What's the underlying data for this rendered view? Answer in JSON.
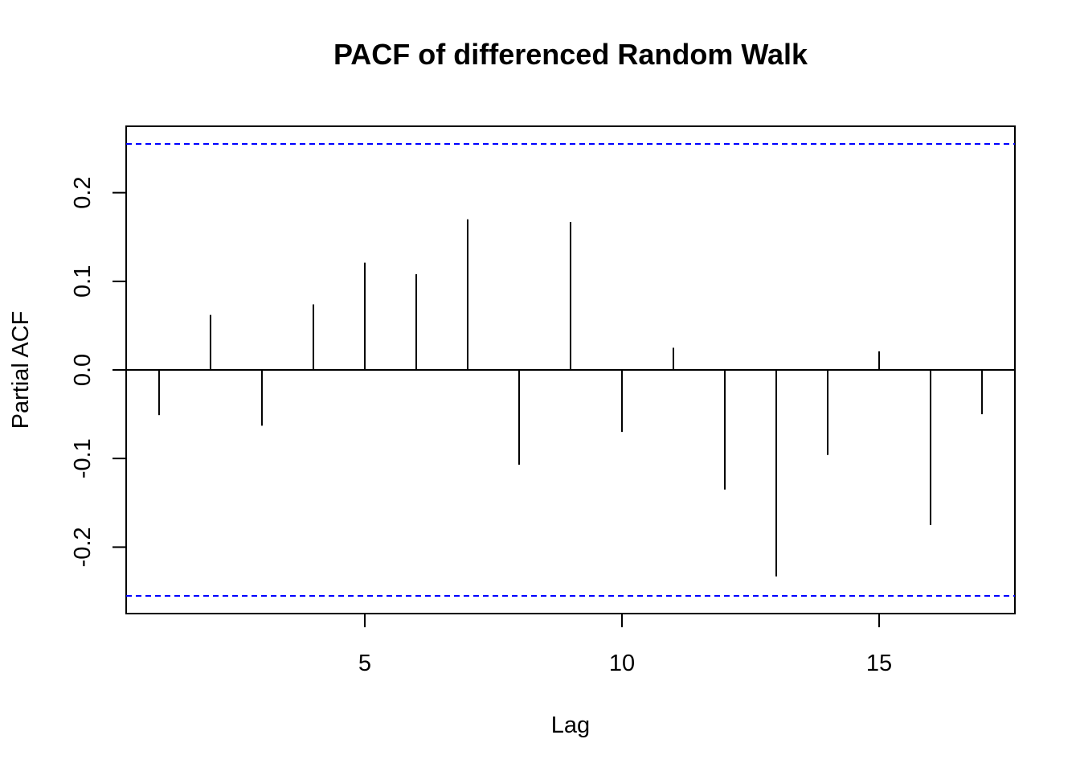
{
  "chart_data": {
    "type": "bar",
    "title": "PACF of differenced Random Walk",
    "xlabel": "Lag",
    "ylabel": "Partial ACF",
    "x": [
      1,
      2,
      3,
      4,
      5,
      6,
      7,
      8,
      9,
      10,
      11,
      12,
      13,
      14,
      15,
      16,
      17
    ],
    "values": [
      -0.051,
      0.062,
      -0.063,
      0.074,
      0.121,
      0.108,
      0.17,
      -0.107,
      0.167,
      -0.07,
      0.025,
      -0.135,
      -0.233,
      -0.096,
      0.021,
      -0.175,
      -0.05
    ],
    "confidence_limit": 0.255,
    "xlim": [
      0.36,
      17.64
    ],
    "ylim": [
      -0.275,
      0.275
    ],
    "x_ticks": [
      5,
      10,
      15
    ],
    "x_tick_labels": [
      "5",
      "10",
      "15"
    ],
    "y_ticks": [
      -0.2,
      -0.1,
      0.0,
      0.1,
      0.2
    ],
    "y_tick_labels": [
      "-0.2",
      "-0.1",
      "0.0",
      "0.1",
      "0.2"
    ],
    "grid": false,
    "colors": {
      "bars": "#000000",
      "zero_line": "#000000",
      "confidence_lines": "#0000ff"
    }
  }
}
